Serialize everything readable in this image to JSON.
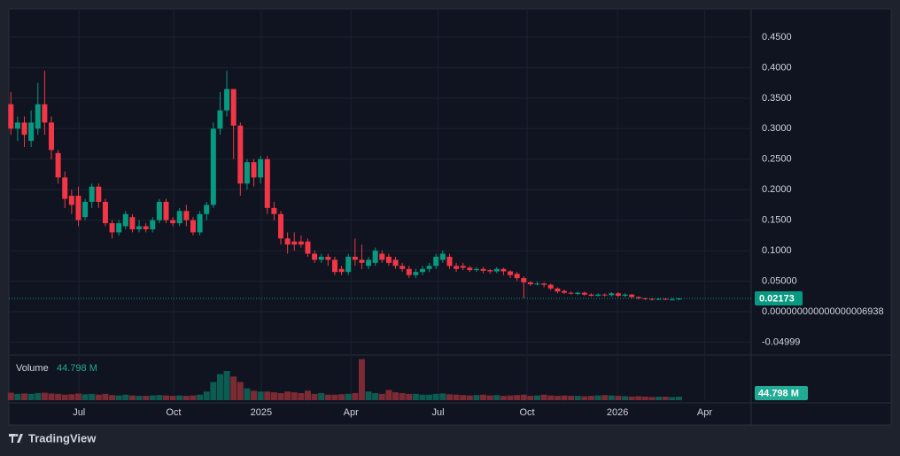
{
  "chart_data": {
    "type": "candlestick",
    "candles": {
      "open": [
        0.34,
        0.3,
        0.31,
        0.28,
        0.3,
        0.34,
        0.31,
        0.26,
        0.22,
        0.19,
        0.19,
        0.155,
        0.18,
        0.205,
        0.18,
        0.145,
        0.13,
        0.14,
        0.155,
        0.135,
        0.14,
        0.135,
        0.15,
        0.18,
        0.15,
        0.145,
        0.165,
        0.15,
        0.13,
        0.16,
        0.175,
        0.3,
        0.33,
        0.365,
        0.305,
        0.21,
        0.245,
        0.22,
        0.25,
        0.17,
        0.16,
        0.12,
        0.115,
        0.115,
        0.115,
        0.095,
        0.085,
        0.09,
        0.085,
        0.07,
        0.065,
        0.09,
        0.085,
        0.075,
        0.08,
        0.095,
        0.09,
        0.085,
        0.075,
        0.07,
        0.06,
        0.065,
        0.07,
        0.075,
        0.085,
        0.09,
        0.075,
        0.075,
        0.072,
        0.068,
        0.07,
        0.068,
        0.066,
        0.07,
        0.066,
        0.062,
        0.055,
        0.048,
        0.045,
        0.046,
        0.044,
        0.038,
        0.034,
        0.031,
        0.029,
        0.031,
        0.028,
        0.026,
        0.028,
        0.027,
        0.03,
        0.026,
        0.028,
        0.024,
        0.022,
        0.021,
        0.02,
        0.021,
        0.02,
        0.02
      ],
      "high": [
        0.36,
        0.32,
        0.32,
        0.33,
        0.375,
        0.395,
        0.32,
        0.265,
        0.23,
        0.2,
        0.205,
        0.185,
        0.21,
        0.21,
        0.185,
        0.15,
        0.15,
        0.165,
        0.16,
        0.15,
        0.145,
        0.155,
        0.185,
        0.185,
        0.155,
        0.17,
        0.175,
        0.155,
        0.165,
        0.18,
        0.31,
        0.36,
        0.395,
        0.365,
        0.31,
        0.25,
        0.25,
        0.255,
        0.255,
        0.18,
        0.165,
        0.13,
        0.13,
        0.125,
        0.12,
        0.1,
        0.095,
        0.095,
        0.09,
        0.075,
        0.095,
        0.12,
        0.11,
        0.09,
        0.105,
        0.1,
        0.095,
        0.09,
        0.08,
        0.075,
        0.07,
        0.075,
        0.08,
        0.095,
        0.1,
        0.095,
        0.08,
        0.08,
        0.075,
        0.073,
        0.073,
        0.07,
        0.073,
        0.072,
        0.068,
        0.065,
        0.058,
        0.05,
        0.049,
        0.048,
        0.046,
        0.04,
        0.036,
        0.033,
        0.033,
        0.033,
        0.03,
        0.03,
        0.03,
        0.032,
        0.032,
        0.03,
        0.029,
        0.025,
        0.023,
        0.022,
        0.022,
        0.022,
        0.023,
        0.023
      ],
      "low": [
        0.29,
        0.28,
        0.27,
        0.27,
        0.29,
        0.29,
        0.25,
        0.21,
        0.17,
        0.16,
        0.14,
        0.15,
        0.17,
        0.17,
        0.14,
        0.12,
        0.125,
        0.135,
        0.13,
        0.13,
        0.13,
        0.13,
        0.145,
        0.145,
        0.14,
        0.14,
        0.14,
        0.125,
        0.125,
        0.15,
        0.17,
        0.29,
        0.32,
        0.25,
        0.19,
        0.2,
        0.205,
        0.21,
        0.16,
        0.15,
        0.11,
        0.095,
        0.1,
        0.105,
        0.09,
        0.08,
        0.08,
        0.075,
        0.06,
        0.06,
        0.06,
        0.075,
        0.07,
        0.07,
        0.075,
        0.08,
        0.075,
        0.07,
        0.065,
        0.055,
        0.055,
        0.06,
        0.065,
        0.07,
        0.08,
        0.07,
        0.065,
        0.068,
        0.065,
        0.065,
        0.063,
        0.062,
        0.063,
        0.06,
        0.055,
        0.05,
        0.022,
        0.042,
        0.043,
        0.04,
        0.035,
        0.03,
        0.029,
        0.028,
        0.027,
        0.026,
        0.025,
        0.025,
        0.025,
        0.025,
        0.024,
        0.024,
        0.022,
        0.02,
        0.019,
        0.018,
        0.019,
        0.019,
        0.019,
        0.019
      ],
      "close": [
        0.3,
        0.31,
        0.29,
        0.31,
        0.34,
        0.31,
        0.265,
        0.22,
        0.185,
        0.175,
        0.15,
        0.18,
        0.205,
        0.18,
        0.145,
        0.13,
        0.145,
        0.16,
        0.135,
        0.14,
        0.135,
        0.15,
        0.18,
        0.15,
        0.145,
        0.165,
        0.15,
        0.13,
        0.16,
        0.175,
        0.3,
        0.33,
        0.365,
        0.305,
        0.21,
        0.245,
        0.22,
        0.25,
        0.17,
        0.16,
        0.12,
        0.11,
        0.11,
        0.11,
        0.095,
        0.085,
        0.09,
        0.085,
        0.065,
        0.065,
        0.09,
        0.085,
        0.08,
        0.085,
        0.1,
        0.085,
        0.08,
        0.075,
        0.07,
        0.06,
        0.065,
        0.07,
        0.075,
        0.09,
        0.095,
        0.075,
        0.07,
        0.072,
        0.068,
        0.07,
        0.067,
        0.066,
        0.07,
        0.066,
        0.06,
        0.055,
        0.048,
        0.045,
        0.046,
        0.044,
        0.038,
        0.033,
        0.031,
        0.03,
        0.031,
        0.028,
        0.026,
        0.028,
        0.027,
        0.03,
        0.026,
        0.028,
        0.024,
        0.022,
        0.021,
        0.02,
        0.021,
        0.02,
        0.02,
        0.02173
      ]
    },
    "volume": {
      "name": "Volume",
      "values": [
        95,
        80,
        85,
        80,
        90,
        95,
        85,
        80,
        70,
        75,
        85,
        75,
        80,
        70,
        80,
        65,
        60,
        70,
        60,
        55,
        55,
        60,
        65,
        60,
        55,
        60,
        55,
        60,
        70,
        110,
        230,
        330,
        370,
        300,
        230,
        150,
        120,
        110,
        110,
        100,
        90,
        110,
        100,
        90,
        120,
        80,
        90,
        70,
        70,
        75,
        80,
        90,
        520,
        110,
        90,
        80,
        130,
        100,
        90,
        80,
        80,
        70,
        70,
        80,
        85,
        75,
        70,
        65,
        60,
        65,
        70,
        60,
        65,
        55,
        60,
        65,
        70,
        55,
        60,
        70,
        60,
        55,
        60,
        55,
        55,
        50,
        55,
        60,
        65,
        60,
        55,
        50,
        45,
        50,
        45,
        40,
        45,
        45,
        40,
        44.798
      ],
      "last_value_label": "44.798 M",
      "vlim": [
        0,
        560
      ]
    },
    "xlim": [
      -0.3,
      109.7
    ],
    "xticks": [
      {
        "value": 10.1,
        "label": "Jul"
      },
      {
        "value": 24.1,
        "label": "Oct"
      },
      {
        "value": 37.1,
        "label": "2025"
      },
      {
        "value": 50.4,
        "label": "Apr"
      },
      {
        "value": 63.3,
        "label": "Jul"
      },
      {
        "value": 76.5,
        "label": "Oct"
      },
      {
        "value": 89.9,
        "label": "2026"
      },
      {
        "value": 102.8,
        "label": "Apr"
      }
    ],
    "ylim": [
      -0.0697,
      0.4964
    ],
    "yticks": [
      {
        "value": 0.45,
        "label": "0.4500"
      },
      {
        "value": 0.4,
        "label": "0.4000"
      },
      {
        "value": 0.35,
        "label": "0.3500"
      },
      {
        "value": 0.3,
        "label": "0.3000"
      },
      {
        "value": 0.25,
        "label": "0.2500"
      },
      {
        "value": 0.2,
        "label": "0.2000"
      },
      {
        "value": 0.15,
        "label": "0.1500"
      },
      {
        "value": 0.1,
        "label": "0.1000"
      },
      {
        "value": 0.05,
        "label": "0.05000"
      },
      {
        "value": 6.938e-18,
        "label": "0.000000000000000006938"
      },
      -0.04999
    ],
    "last_price": 0.02173,
    "up_color": "#089981",
    "down_color": "#f23645",
    "volume_up_color": "#0c5c52",
    "volume_down_color": "#7c2a34",
    "grid": true,
    "brand": "TradingView"
  }
}
